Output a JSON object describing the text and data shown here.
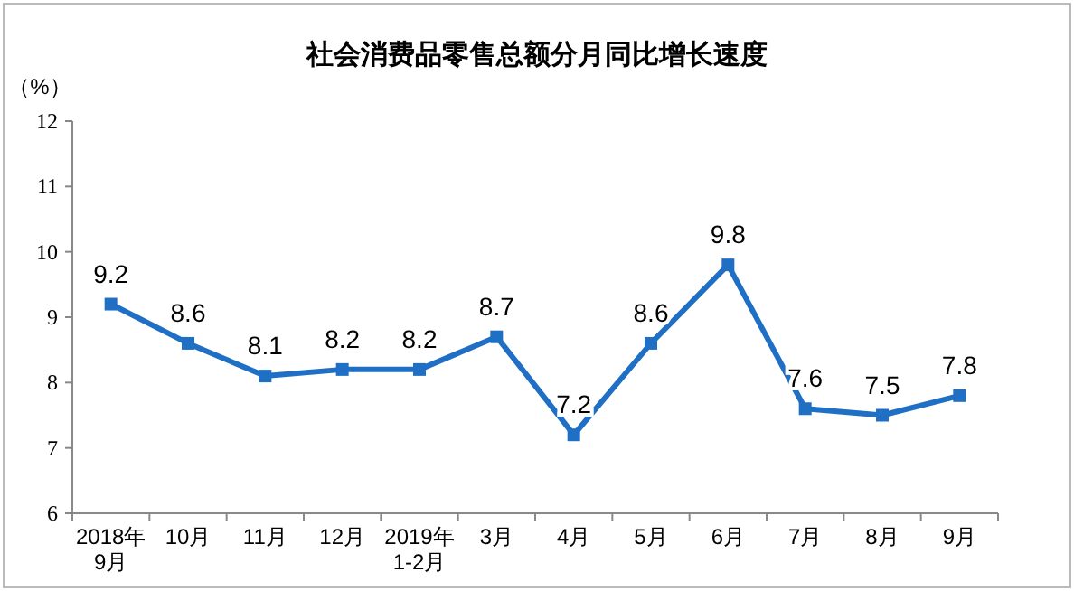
{
  "chart_data": {
    "type": "line",
    "title": "社会消费品零售总额分月同比增长速度",
    "ylabel": "（%）",
    "categories": [
      "2018年\n9月",
      "10月",
      "11月",
      "12月",
      "2019年\n1-2月",
      "3月",
      "4月",
      "5月",
      "6月",
      "7月",
      "8月",
      "9月"
    ],
    "series": [
      {
        "color": "#1f6fc5",
        "values": [
          9.2,
          8.6,
          8.1,
          8.2,
          8.2,
          8.7,
          7.2,
          8.6,
          9.8,
          7.6,
          7.5,
          7.8
        ]
      }
    ],
    "ylim": [
      6,
      12
    ],
    "yticks": [
      6,
      7,
      8,
      9,
      10,
      11,
      12
    ],
    "marker": "square",
    "line_style": "solid",
    "data_labels": true,
    "grid": false
  }
}
